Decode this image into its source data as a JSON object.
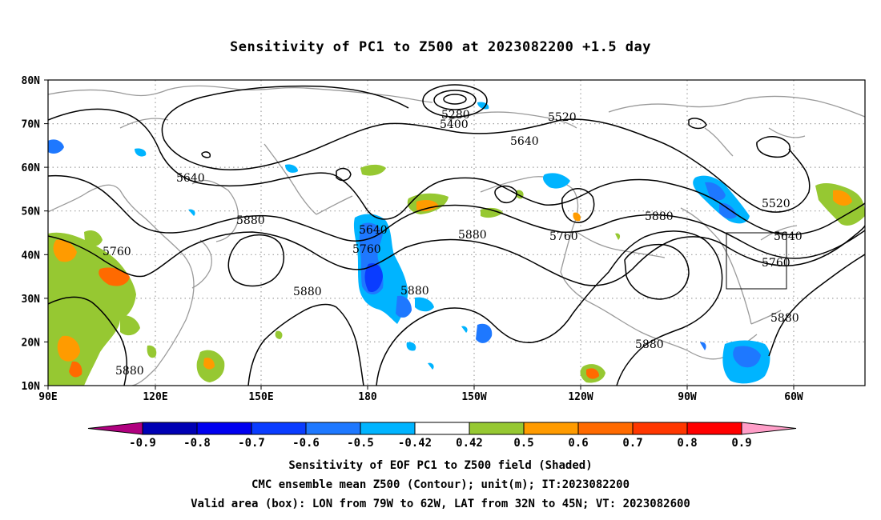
{
  "title": "Sensitivity of PC1 to Z500 at 2023082200 +1.5 day",
  "lat_labels": [
    "80N",
    "70N",
    "60N",
    "50N",
    "40N",
    "30N",
    "20N",
    "10N"
  ],
  "lon_labels": [
    "90E",
    "120E",
    "150E",
    "180",
    "150W",
    "120W",
    "90W",
    "60W"
  ],
  "contour_labels": [
    {
      "text": "5280"
    },
    {
      "text": "5400"
    },
    {
      "text": "5520"
    },
    {
      "text": "5640"
    },
    {
      "text": "5640"
    },
    {
      "text": "5640"
    },
    {
      "text": "5640"
    },
    {
      "text": "5520"
    },
    {
      "text": "5760"
    },
    {
      "text": "5760"
    },
    {
      "text": "5760"
    },
    {
      "text": "5760"
    },
    {
      "text": "5880"
    },
    {
      "text": "5880"
    },
    {
      "text": "5880"
    },
    {
      "text": "5880"
    },
    {
      "text": "5880"
    },
    {
      "text": "5880"
    },
    {
      "text": "5880"
    },
    {
      "text": "5880"
    }
  ],
  "colorbar": {
    "labels": [
      "-0.9",
      "-0.8",
      "-0.7",
      "-0.6",
      "-0.5",
      "-0.42",
      "0.42",
      "0.5",
      "0.6",
      "0.7",
      "0.8",
      "0.9"
    ],
    "colors": [
      "#b0007f",
      "#0000b4",
      "#0000f0",
      "#0a3cff",
      "#1e78ff",
      "#00b4ff",
      "#ffffff",
      "#96c832",
      "#ff9b00",
      "#ff6a00",
      "#ff3700",
      "#ff0000",
      "#ff9ec8"
    ]
  },
  "captions": [
    "Sensitivity of EOF PC1 to Z500 field (Shaded)",
    "CMC ensemble mean Z500 (Contour); unit(m); IT:2023082200",
    "Valid area (box): LON from 79W to 62W, LAT from 32N to 45N; VT: 2023082600"
  ]
}
